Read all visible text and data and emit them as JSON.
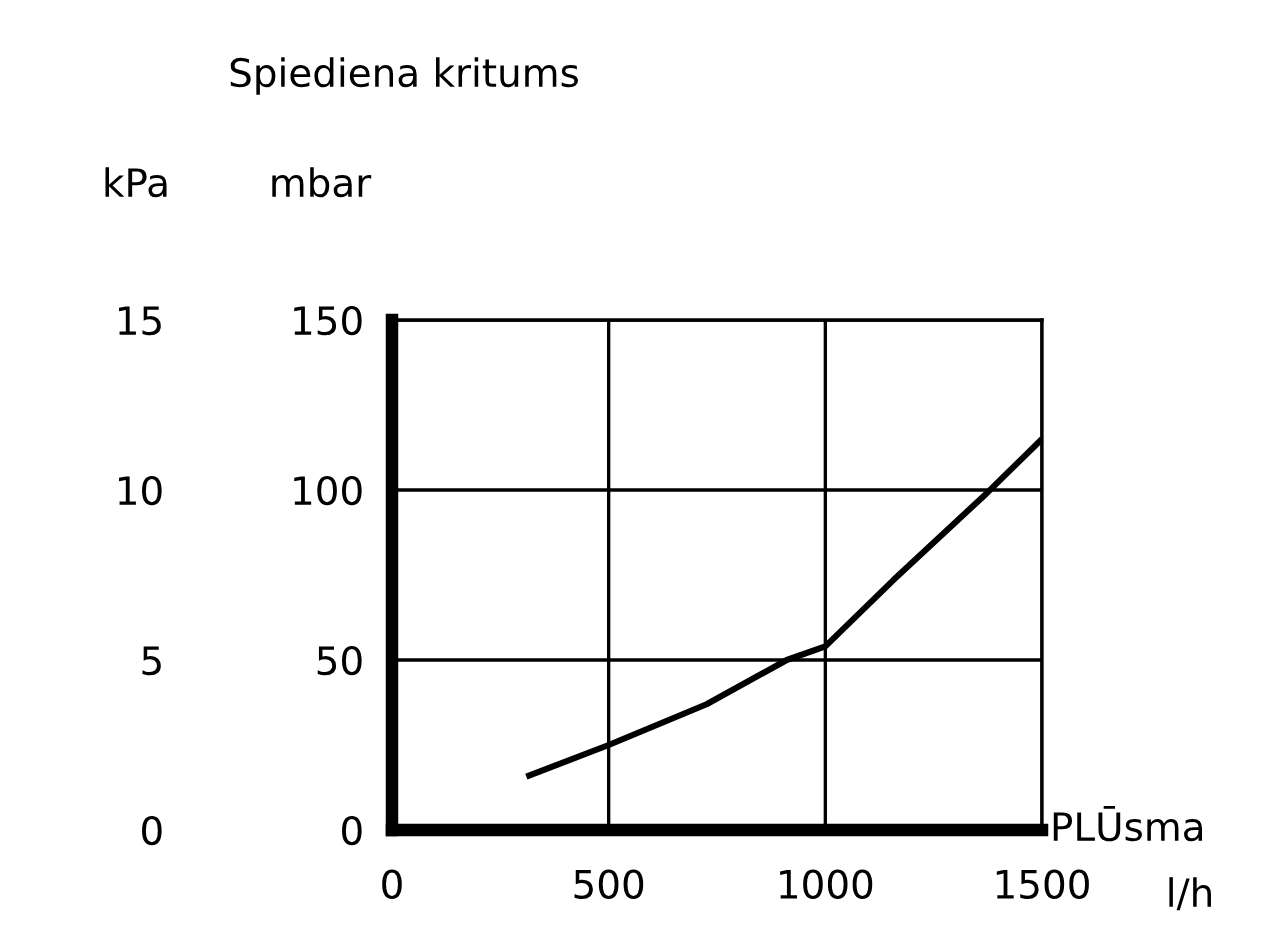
{
  "chart_data": {
    "type": "line",
    "title": "Spiediena kritums",
    "xlabel": "PLŪsma",
    "ylabel": "mbar",
    "y2label": "kPa",
    "annotations": [
      "l/h"
    ],
    "series": [
      {
        "color": "#000000",
        "x": [
          310,
          500,
          726,
          911,
          1000,
          1157,
          1372,
          1500
        ],
        "values": [
          15.7,
          25,
          37,
          50,
          54,
          73.5,
          99,
          115
        ]
      }
    ],
    "xlim": [
      0,
      1500
    ],
    "xticks": [
      0,
      500,
      1000,
      1500
    ],
    "ylim": [
      0,
      150
    ],
    "yticks": [
      0,
      50,
      100,
      150
    ],
    "y2lim": [
      0,
      15
    ],
    "y2ticks": [
      0,
      5,
      10,
      15
    ],
    "grid": true,
    "line_style": "solid",
    "marker": "none"
  }
}
